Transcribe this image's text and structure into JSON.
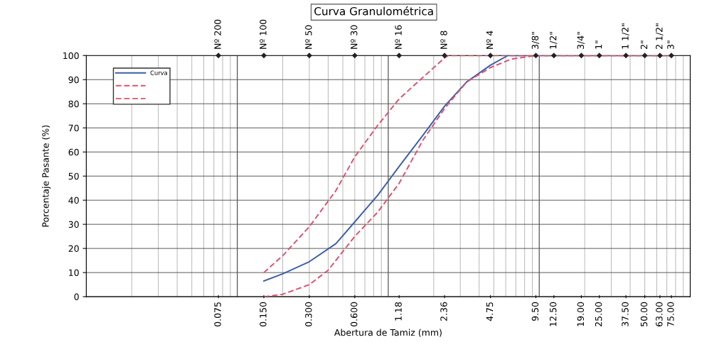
{
  "chart_data": {
    "type": "line",
    "title": "Curva Granulométrica",
    "xlabel": "Abertura de Tamiz (mm)",
    "ylabel": "Porcentaje Pasante (%)",
    "log": "x",
    "xlim": [
      0.01,
      100
    ],
    "ylim": [
      0,
      100
    ],
    "xticks": [
      {
        "value": 0.075,
        "label": "0.075"
      },
      {
        "value": 0.15,
        "label": "0.150"
      },
      {
        "value": 0.3,
        "label": "0.300"
      },
      {
        "value": 0.6,
        "label": "0.600"
      },
      {
        "value": 1.18,
        "label": "1.18"
      },
      {
        "value": 2.36,
        "label": "2.36"
      },
      {
        "value": 4.75,
        "label": "4.75"
      },
      {
        "value": 9.5,
        "label": "9.50"
      },
      {
        "value": 12.5,
        "label": "12.50"
      },
      {
        "value": 19,
        "label": "19.00"
      },
      {
        "value": 25,
        "label": "25.00"
      },
      {
        "value": 37.5,
        "label": "37.50"
      },
      {
        "value": 50,
        "label": "50.00"
      },
      {
        "value": 63,
        "label": "63.00"
      },
      {
        "value": 75,
        "label": "75.00"
      }
    ],
    "annotations": [
      {
        "text": "Nº 200",
        "x": 0.075,
        "y": 100
      },
      {
        "text": "Nº 100",
        "x": 0.15,
        "y": 100
      },
      {
        "text": "Nº 50",
        "x": 0.3,
        "y": 100
      },
      {
        "text": "Nº 30",
        "x": 0.6,
        "y": 100
      },
      {
        "text": "Nº 16",
        "x": 1.18,
        "y": 100
      },
      {
        "text": "Nº 8",
        "x": 2.36,
        "y": 100
      },
      {
        "text": "Nº 4",
        "x": 4.75,
        "y": 100
      },
      {
        "text": "3/8\"",
        "x": 9.5,
        "y": 100
      },
      {
        "text": "1/2\"",
        "x": 12.5,
        "y": 100
      },
      {
        "text": "3/4\"",
        "x": 19,
        "y": 100
      },
      {
        "text": "1\"",
        "x": 25,
        "y": 100
      },
      {
        "text": "1 1/2\"",
        "x": 37.5,
        "y": 100
      },
      {
        "text": "2\"",
        "x": 50,
        "y": 100
      },
      {
        "text": "2 1/2\"",
        "x": 63,
        "y": 100
      },
      {
        "text": "3\"",
        "x": 75,
        "y": 100
      }
    ],
    "yticks": [
      0,
      10,
      20,
      30,
      40,
      50,
      60,
      70,
      80,
      90,
      100
    ],
    "grid": true,
    "legend": "top left",
    "marker": "none",
    "series": [
      {
        "name": "Curva",
        "color": "#3a5fa8",
        "line_style": "solid",
        "x": [
          0.15,
          0.2,
          0.3,
          0.45,
          0.6,
          0.85,
          1.18,
          1.7,
          2.36,
          3.3,
          4.75,
          6.2,
          9.5,
          75
        ],
        "values": [
          6.5,
          9.5,
          14.5,
          22,
          31,
          42,
          54,
          67,
          79,
          89,
          96,
          100,
          100,
          100
        ]
      },
      {
        "color": "#e0506e",
        "line_style": "dashed",
        "x": [
          0.15,
          0.2,
          0.3,
          0.45,
          0.6,
          0.85,
          1.18,
          1.7,
          2.36,
          2.5,
          75
        ],
        "values": [
          10,
          17,
          29,
          44,
          58,
          71,
          82,
          91,
          99,
          100,
          100
        ]
      },
      {
        "color": "#e0506e",
        "line_style": "dashed",
        "x": [
          0.15,
          0.2,
          0.3,
          0.4,
          0.6,
          0.85,
          1.18,
          1.7,
          2.36,
          3.3,
          4.75,
          6.5,
          9.5,
          75
        ],
        "values": [
          0,
          1,
          5,
          11,
          25,
          35,
          47,
          65,
          78,
          89,
          95,
          98.5,
          100,
          100
        ]
      }
    ]
  }
}
